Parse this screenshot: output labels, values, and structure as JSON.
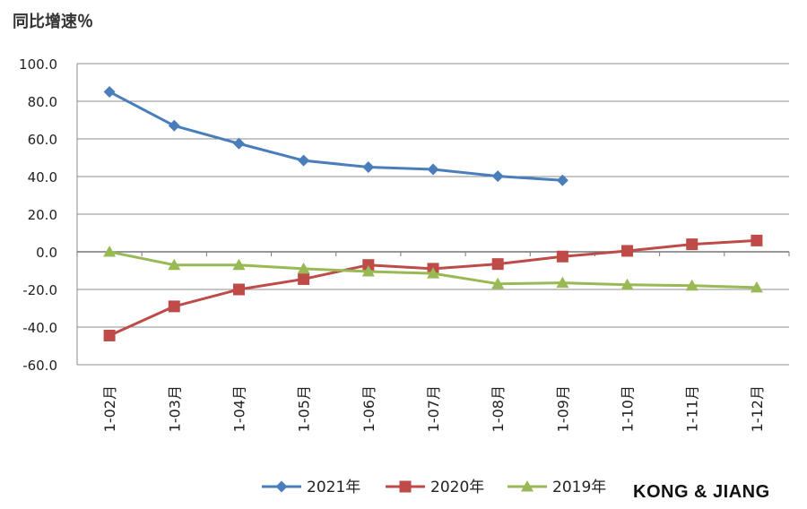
{
  "watermark": "KONG & JIANG",
  "chart_data": {
    "type": "line",
    "title": "同比增速％",
    "xlabel": "",
    "ylabel": "",
    "categories": [
      "1-02月",
      "1-03月",
      "1-04月",
      "1-05月",
      "1-06月",
      "1-07月",
      "1-08月",
      "1-09月",
      "1-10月",
      "1-11月",
      "1-12月"
    ],
    "ylim": [
      -60,
      100
    ],
    "yticks": [
      100,
      80,
      60,
      40,
      20,
      0,
      -20,
      -40,
      -60
    ],
    "ytick_labels": [
      "100.0",
      "80.0",
      "60.0",
      "40.0",
      "20.0",
      "0.0",
      "-20.0",
      "-40.0",
      "-60.0"
    ],
    "grid": true,
    "legend_position": "bottom",
    "series": [
      {
        "name": "2021年",
        "color": "#4a7ebb",
        "marker": "diamond",
        "values": [
          85.0,
          67.0,
          57.5,
          48.5,
          45.0,
          43.8,
          40.2,
          38.0,
          null,
          null,
          null
        ]
      },
      {
        "name": "2020年",
        "color": "#be4b48",
        "marker": "square",
        "values": [
          -44.5,
          -29.0,
          -20.0,
          -14.5,
          -7.0,
          -9.0,
          -6.5,
          -2.5,
          0.5,
          4.0,
          6.0
        ]
      },
      {
        "name": "2019年",
        "color": "#98b954",
        "marker": "triangle",
        "values": [
          0.0,
          -7.0,
          -7.0,
          -9.0,
          -10.5,
          -11.5,
          -17.0,
          -16.5,
          -17.5,
          -18.0,
          -19.0
        ]
      }
    ]
  }
}
